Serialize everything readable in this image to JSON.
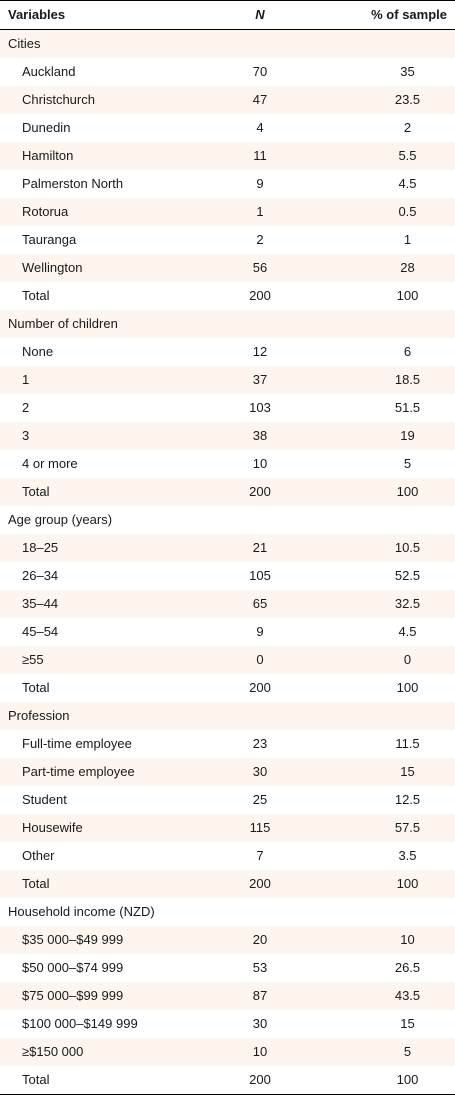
{
  "header": {
    "variables": "Variables",
    "n": "N",
    "pct": "% of sample"
  },
  "rows": [
    {
      "label": "Cities",
      "type": "section",
      "n": "",
      "pct": ""
    },
    {
      "label": "Auckland",
      "type": "item",
      "n": "70",
      "pct": "35"
    },
    {
      "label": "Christchurch",
      "type": "item",
      "n": "47",
      "pct": "23.5"
    },
    {
      "label": "Dunedin",
      "type": "item",
      "n": "4",
      "pct": "2"
    },
    {
      "label": "Hamilton",
      "type": "item",
      "n": "11",
      "pct": "5.5"
    },
    {
      "label": "Palmerston North",
      "type": "item",
      "n": "9",
      "pct": "4.5"
    },
    {
      "label": "Rotorua",
      "type": "item",
      "n": "1",
      "pct": "0.5"
    },
    {
      "label": "Tauranga",
      "type": "item",
      "n": "2",
      "pct": "1"
    },
    {
      "label": "Wellington",
      "type": "item",
      "n": "56",
      "pct": "28"
    },
    {
      "label": "Total",
      "type": "item",
      "n": "200",
      "pct": "100"
    },
    {
      "label": "Number of children",
      "type": "section",
      "n": "",
      "pct": ""
    },
    {
      "label": "None",
      "type": "item",
      "n": "12",
      "pct": "6"
    },
    {
      "label": "1",
      "type": "item",
      "n": "37",
      "pct": "18.5"
    },
    {
      "label": "2",
      "type": "item",
      "n": "103",
      "pct": "51.5"
    },
    {
      "label": "3",
      "type": "item",
      "n": "38",
      "pct": "19"
    },
    {
      "label": "4 or more",
      "type": "item",
      "n": "10",
      "pct": "5"
    },
    {
      "label": "Total",
      "type": "item",
      "n": "200",
      "pct": "100"
    },
    {
      "label": "Age group (years)",
      "type": "section",
      "n": "",
      "pct": ""
    },
    {
      "label": "18–25",
      "type": "item",
      "n": "21",
      "pct": "10.5"
    },
    {
      "label": "26–34",
      "type": "item",
      "n": "105",
      "pct": "52.5"
    },
    {
      "label": "35–44",
      "type": "item",
      "n": "65",
      "pct": "32.5"
    },
    {
      "label": "45–54",
      "type": "item",
      "n": "9",
      "pct": "4.5"
    },
    {
      "label": "≥55",
      "type": "item",
      "n": "0",
      "pct": "0"
    },
    {
      "label": "Total",
      "type": "item",
      "n": "200",
      "pct": "100"
    },
    {
      "label": "Profession",
      "type": "section",
      "n": "",
      "pct": ""
    },
    {
      "label": "Full-time employee",
      "type": "item",
      "n": "23",
      "pct": "11.5"
    },
    {
      "label": "Part-time employee",
      "type": "item",
      "n": "30",
      "pct": "15"
    },
    {
      "label": "Student",
      "type": "item",
      "n": "25",
      "pct": "12.5"
    },
    {
      "label": "Housewife",
      "type": "item",
      "n": "115",
      "pct": "57.5"
    },
    {
      "label": "Other",
      "type": "item",
      "n": "7",
      "pct": "3.5"
    },
    {
      "label": "Total",
      "type": "item",
      "n": "200",
      "pct": "100"
    },
    {
      "label": "Household income (NZD)",
      "type": "section",
      "n": "",
      "pct": ""
    },
    {
      "label": "$35 000–$49 999",
      "type": "item",
      "n": "20",
      "pct": "10"
    },
    {
      "label": "$50 000–$74 999",
      "type": "item",
      "n": "53",
      "pct": "26.5"
    },
    {
      "label": "$75 000–$99 999",
      "type": "item",
      "n": "87",
      "pct": "43.5"
    },
    {
      "label": "$100 000–$149 999",
      "type": "item",
      "n": "30",
      "pct": "15"
    },
    {
      "label": "≥$150 000",
      "type": "item",
      "n": "10",
      "pct": "5"
    },
    {
      "label": "Total",
      "type": "item",
      "n": "200",
      "pct": "100"
    }
  ]
}
